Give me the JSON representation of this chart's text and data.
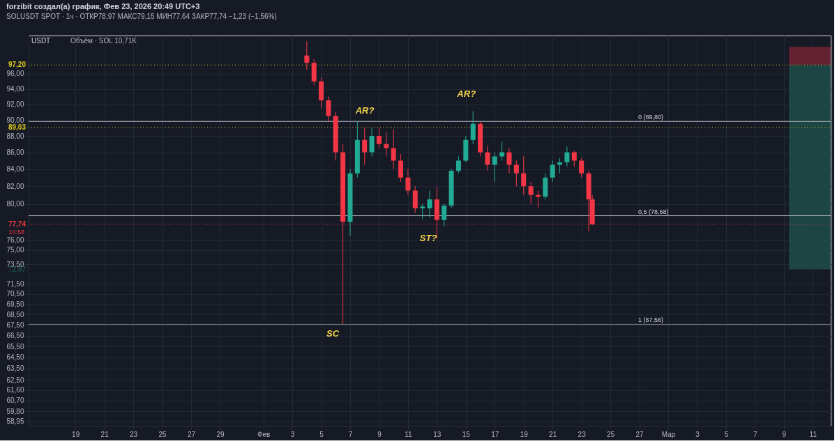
{
  "chart_data": {
    "type": "candlestick",
    "title": "forzibit создал(а) график, Фев 23, 2026 20:49 UTC+3",
    "subtitle": "SOLUSDT SPOT · 1ч · ОТКР78,97 МАКС79,15 МИН77,64 ЗАКР77,74 −1,23 (−1,56%)",
    "x": [
      "2026-02-04T00:00",
      "2026-02-04T12:00",
      "2026-02-05T00:00",
      "2026-02-05T12:00",
      "2026-02-06T00:00",
      "2026-02-06T12:00",
      "2026-02-07T00:00",
      "2026-02-07T12:00",
      "2026-02-08T00:00",
      "2026-02-08T12:00",
      "2026-02-09T00:00",
      "2026-02-09T12:00",
      "2026-02-10T00:00",
      "2026-02-10T12:00",
      "2026-02-11T00:00",
      "2026-02-11T12:00",
      "2026-02-12T00:00",
      "2026-02-12T12:00",
      "2026-02-13T00:00",
      "2026-02-13T12:00",
      "2026-02-14T00:00",
      "2026-02-14T12:00",
      "2026-02-15T00:00",
      "2026-02-15T12:00",
      "2026-02-16T00:00",
      "2026-02-16T12:00",
      "2026-02-17T00:00",
      "2026-02-17T12:00",
      "2026-02-18T00:00",
      "2026-02-18T12:00",
      "2026-02-19T00:00",
      "2026-02-19T12:00",
      "2026-02-20T00:00",
      "2026-02-20T12:00",
      "2026-02-21T00:00",
      "2026-02-21T12:00",
      "2026-02-22T00:00",
      "2026-02-22T12:00",
      "2026-02-23T00:00",
      "2026-02-23T12:00",
      "2026-02-23T18:00"
    ],
    "ohlc": [
      [
        98.5,
        100.5,
        96.5,
        97.5
      ],
      [
        97.5,
        98,
        94.5,
        95
      ],
      [
        95,
        95.5,
        91.5,
        92.5
      ],
      [
        92.5,
        93,
        89.8,
        90.5
      ],
      [
        90.5,
        91,
        85,
        86
      ],
      [
        86,
        87,
        67.56,
        78
      ],
      [
        78,
        84,
        76.5,
        83.5
      ],
      [
        83.5,
        89.8,
        83,
        87.5
      ],
      [
        87.5,
        89,
        84.5,
        86
      ],
      [
        86,
        89,
        85.5,
        88
      ],
      [
        88,
        89,
        86.5,
        87
      ],
      [
        87,
        88.5,
        85.5,
        86.5
      ],
      [
        86.5,
        88.8,
        84,
        85
      ],
      [
        85,
        85.8,
        82.5,
        83
      ],
      [
        83,
        84,
        81,
        81.5
      ],
      [
        81.5,
        82,
        79,
        79.5
      ],
      [
        79.5,
        80,
        78.3,
        79.7
      ],
      [
        79.5,
        81.5,
        78.5,
        80.5
      ],
      [
        80.5,
        81.9,
        76.2,
        78.2
      ],
      [
        78.2,
        80,
        77.5,
        79.8
      ],
      [
        79.8,
        84,
        79.5,
        83.8
      ],
      [
        83.8,
        85.5,
        83.5,
        85
      ],
      [
        85,
        88,
        84.8,
        87.5
      ],
      [
        87.5,
        91.1,
        87,
        89.5
      ],
      [
        89.5,
        89.8,
        85.5,
        86
      ],
      [
        86,
        86.8,
        83.8,
        84.5
      ],
      [
        84.5,
        86,
        82.5,
        85.5
      ],
      [
        85.5,
        87.3,
        85,
        86
      ],
      [
        86,
        86.5,
        83.5,
        84.5
      ],
      [
        84.5,
        85,
        82,
        83.5
      ],
      [
        83.5,
        85.5,
        81,
        82
      ],
      [
        82,
        82.5,
        80,
        81
      ],
      [
        81,
        81.5,
        79.6,
        80.8
      ],
      [
        80.8,
        83.5,
        80.5,
        83
      ],
      [
        83,
        85,
        82.5,
        84.5
      ],
      [
        84.5,
        85.3,
        83.5,
        84.8
      ],
      [
        84.8,
        86.7,
        84.3,
        86
      ],
      [
        86,
        86.2,
        84.3,
        85
      ],
      [
        85,
        85.3,
        83,
        83.5
      ],
      [
        83.5,
        83.8,
        77,
        80.5
      ],
      [
        80.5,
        81,
        77.64,
        77.74
      ]
    ],
    "colors": [
      "#f23645",
      "#f23645",
      "#f23645",
      "#f23645",
      "#f23645",
      "#f23645",
      "#22ab94",
      "#22ab94",
      "#f23645",
      "#22ab94",
      "#f23645",
      "#f23645",
      "#f23645",
      "#f23645",
      "#f23645",
      "#f23645",
      "#22ab94",
      "#22ab94",
      "#f23645",
      "#22ab94",
      "#22ab94",
      "#22ab94",
      "#22ab94",
      "#22ab94",
      "#f23645",
      "#f23645",
      "#22ab94",
      "#22ab94",
      "#f23645",
      "#f23645",
      "#f23645",
      "#f23645",
      "#f23645",
      "#22ab94",
      "#22ab94",
      "#22ab94",
      "#22ab94",
      "#f23645",
      "#f23645",
      "#f23645",
      "#f23645"
    ],
    "log": true,
    "ylim": [
      58.6,
      101.3
    ],
    "yticks": [
      {
        "value": 96,
        "label": "96,00"
      },
      {
        "value": 94,
        "label": "94,00"
      },
      {
        "value": 92,
        "label": "92,00"
      },
      {
        "value": 90,
        "label": "90,00"
      },
      {
        "value": 88,
        "label": "88,00"
      },
      {
        "value": 86,
        "label": "86,00"
      },
      {
        "value": 84,
        "label": "84,00"
      },
      {
        "value": 82,
        "label": "82,00"
      },
      {
        "value": 80,
        "label": "80,00"
      },
      {
        "value": 76,
        "label": "76,00"
      },
      {
        "value": 75,
        "label": "75,00"
      },
      {
        "value": 73.5,
        "label": "73,50"
      },
      {
        "value": 71.5,
        "label": "71,50"
      },
      {
        "value": 70.5,
        "label": "70,50"
      },
      {
        "value": 69.5,
        "label": "69,50"
      },
      {
        "value": 68.5,
        "label": "68,50"
      },
      {
        "value": 67.5,
        "label": "67,50"
      },
      {
        "value": 66.5,
        "label": "66,50"
      },
      {
        "value": 65.5,
        "label": "65,50"
      },
      {
        "value": 64.5,
        "label": "64,50"
      },
      {
        "value": 63.5,
        "label": "63,50"
      },
      {
        "value": 62.5,
        "label": "62,50"
      },
      {
        "value": 61.6,
        "label": "61,60"
      },
      {
        "value": 60.7,
        "label": "60,70"
      },
      {
        "value": 59.8,
        "label": "59,80"
      },
      {
        "value": 58.95,
        "label": "58,95"
      }
    ],
    "xlim": [
      "2026-01-16T00:00",
      "2026-03-12T00:00"
    ],
    "xticks": [
      {
        "value": "2026-01-19",
        "label": "19"
      },
      {
        "value": "2026-01-21",
        "label": "21"
      },
      {
        "value": "2026-01-23",
        "label": "23"
      },
      {
        "value": "2026-01-25",
        "label": "25"
      },
      {
        "value": "2026-01-27",
        "label": "27"
      },
      {
        "value": "2026-01-29",
        "label": "29"
      },
      {
        "value": "2026-02-01",
        "label": "Фев"
      },
      {
        "value": "2026-02-03",
        "label": "3"
      },
      {
        "value": "2026-02-05",
        "label": "5"
      },
      {
        "value": "2026-02-07",
        "label": "7"
      },
      {
        "value": "2026-02-09",
        "label": "9"
      },
      {
        "value": "2026-02-11",
        "label": "11"
      },
      {
        "value": "2026-02-13",
        "label": "13"
      },
      {
        "value": "2026-02-15",
        "label": "15"
      },
      {
        "value": "2026-02-17",
        "label": "17"
      },
      {
        "value": "2026-02-19",
        "label": "19"
      },
      {
        "value": "2026-02-21",
        "label": "21"
      },
      {
        "value": "2026-02-23",
        "label": "23"
      },
      {
        "value": "2026-02-25",
        "label": "25"
      },
      {
        "value": "2026-02-27",
        "label": "27"
      },
      {
        "value": "2026-03-01",
        "label": "Мар"
      },
      {
        "value": "2026-03-03",
        "label": "3"
      },
      {
        "value": "2026-03-05",
        "label": "5"
      },
      {
        "value": "2026-03-07",
        "label": "7"
      },
      {
        "value": "2026-03-09",
        "label": "9"
      },
      {
        "value": "2026-03-11",
        "label": "11"
      }
    ],
    "grid": true,
    "ref_lines": [
      {
        "axis": "y",
        "value": 89.8,
        "label": "0 (89,80)",
        "color": "#b2b5be",
        "line_style": "solid"
      },
      {
        "axis": "y",
        "value": 78.68,
        "label": "0,5 (78,68)",
        "color": "#b2b5be",
        "line_style": "solid"
      },
      {
        "axis": "y",
        "value": 67.56,
        "label": "1 (67,56)",
        "color": "#787b86",
        "line_style": "solid"
      },
      {
        "axis": "y",
        "value": 97.2,
        "label": "97,20",
        "color": "#d8c81c",
        "line_style": "dotted"
      },
      {
        "axis": "y",
        "value": 89.03,
        "label": "89,03",
        "color": "#d8c81c",
        "line_style": "dotted"
      },
      {
        "axis": "y",
        "value": 77.74,
        "label": "77,74",
        "color": "#f23645",
        "line_style": "dotted"
      }
    ],
    "bands": [
      {
        "axis": "y",
        "from": 97.2,
        "to": 99.7,
        "color": "#6b2333"
      },
      {
        "axis": "y",
        "from": 72.97,
        "to": 97.2,
        "label": "72,97",
        "color": "#1d4a47"
      }
    ],
    "annotations": [
      "USDT",
      "Объём · SOL 10,71K",
      "10:58",
      "AR?",
      "AR?",
      "ST?",
      "SC"
    ]
  }
}
